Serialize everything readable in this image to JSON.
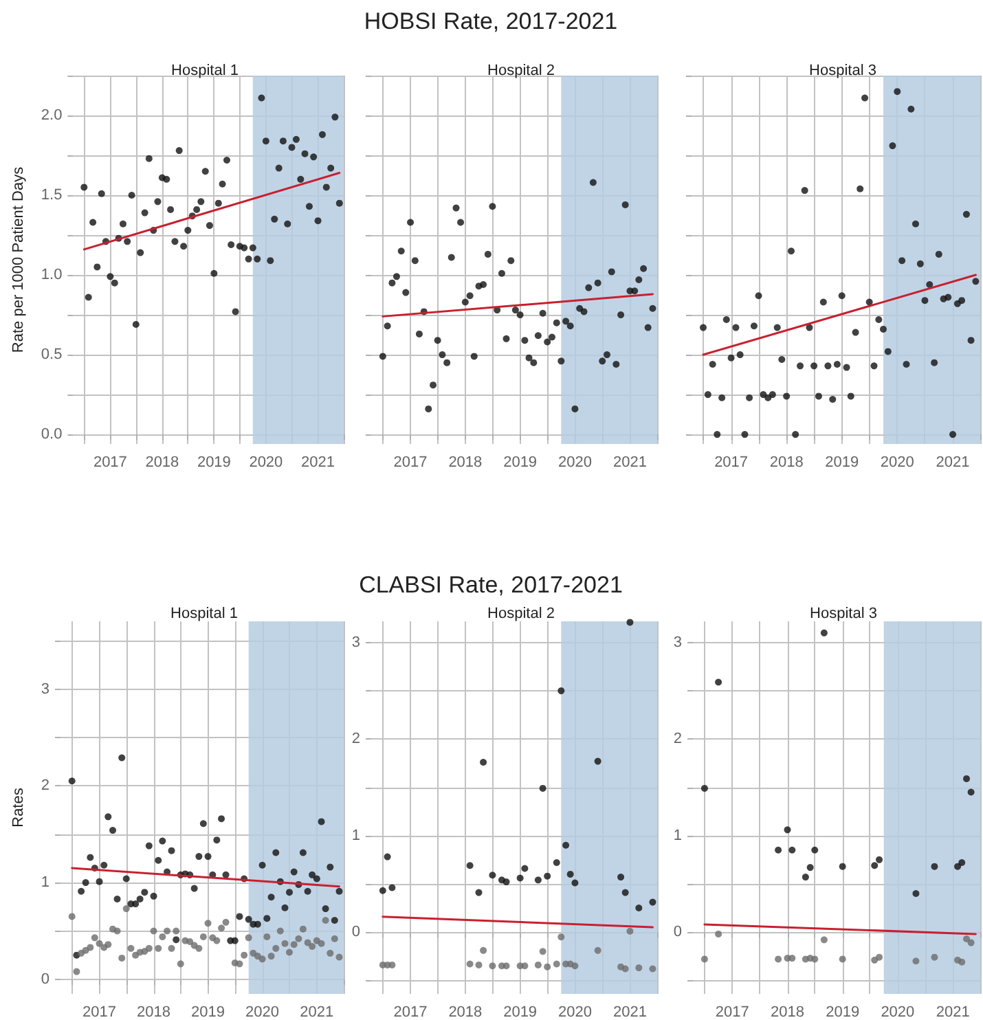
{
  "chart_data": [
    {
      "type": "scatter",
      "subtitle": "Hospital 1",
      "ylabel": "Rate per 1000 Patient Days",
      "grid": true,
      "marker": "circle",
      "x": [
        "2016-07",
        "2016-08",
        "2016-09",
        "2016-10",
        "2016-11",
        "2016-12",
        "2017-01",
        "2017-02",
        "2017-03",
        "2017-04",
        "2017-05",
        "2017-06",
        "2017-07",
        "2017-08",
        "2017-09",
        "2017-10",
        "2017-11",
        "2017-12",
        "2018-01",
        "2018-02",
        "2018-03",
        "2018-04",
        "2018-05",
        "2018-06",
        "2018-07",
        "2018-08",
        "2018-09",
        "2018-10",
        "2018-11",
        "2018-12",
        "2019-01",
        "2019-02",
        "2019-03",
        "2019-04",
        "2019-05",
        "2019-06",
        "2019-07",
        "2019-08",
        "2019-09",
        "2019-10",
        "2019-11",
        "2019-12",
        "2020-01",
        "2020-02",
        "2020-03",
        "2020-04",
        "2020-05",
        "2020-06",
        "2020-07",
        "2020-08",
        "2020-09",
        "2020-10",
        "2020-11",
        "2020-12",
        "2021-01",
        "2021-02",
        "2021-03",
        "2021-04",
        "2021-05",
        "2021-06"
      ],
      "series": [
        {
          "color": "#111111",
          "values": [
            1.55,
            0.86,
            1.33,
            1.05,
            1.51,
            1.21,
            0.99,
            0.95,
            1.23,
            1.32,
            1.21,
            1.5,
            0.69,
            1.14,
            1.39,
            1.73,
            1.28,
            1.46,
            1.61,
            1.6,
            1.41,
            1.21,
            1.78,
            1.18,
            1.28,
            1.37,
            1.41,
            1.46,
            1.65,
            1.31,
            1.01,
            1.45,
            1.57,
            1.72,
            1.19,
            0.77,
            1.18,
            1.17,
            1.1,
            1.17,
            1.1,
            2.11,
            1.84,
            1.09,
            1.35,
            1.67,
            1.84,
            1.32,
            1.8,
            1.85,
            1.6,
            1.76,
            1.43,
            1.74,
            1.34,
            1.88,
            1.55,
            1.67,
            1.99,
            1.45
          ]
        },
        {
          "type": "line",
          "marker": "none",
          "color": "#c8202f",
          "x": [
            "2016-07",
            "2021-06"
          ],
          "values": [
            1.16,
            1.64
          ]
        }
      ],
      "bands": [
        {
          "axis": "x",
          "from": "2019-10",
          "to": "2021-07",
          "color": "#b6cde2"
        }
      ],
      "xlim": [
        "2016-04-15",
        "2021-07"
      ],
      "xticks": [
        {
          "value": "2016-07",
          "label": null
        },
        "2017",
        {
          "value": "2017-07",
          "label": null
        },
        "2018",
        {
          "value": "2018-07",
          "label": null
        },
        "2019",
        {
          "value": "2019-07",
          "label": null
        },
        "2020",
        {
          "value": "2020-07",
          "label": null
        },
        "2021",
        {
          "value": "2021-07",
          "label": null
        }
      ],
      "ylim": [
        -0.06,
        2.25
      ],
      "yticks": [
        {
          "value": 0,
          "label": "0.0"
        },
        {
          "value": 0.25,
          "label": null
        },
        0.5,
        {
          "value": 0.75,
          "label": null
        },
        {
          "value": 1,
          "label": "1.0"
        },
        {
          "value": 1.25,
          "label": null
        },
        1.5,
        {
          "value": 1.75,
          "label": null
        },
        {
          "value": 2,
          "label": "2.0"
        },
        {
          "value": 2.25,
          "label": null
        }
      ]
    },
    {
      "type": "scatter",
      "title": "HOBSI Rate, 2017-2021",
      "subtitle": "Hospital 2",
      "grid": true,
      "marker": "circle",
      "tick_labels": "x",
      "x": [
        "2016-07",
        "2016-08",
        "2016-09",
        "2016-10",
        "2016-11",
        "2016-12",
        "2017-01",
        "2017-02",
        "2017-03",
        "2017-04",
        "2017-05",
        "2017-06",
        "2017-07",
        "2017-08",
        "2017-09",
        "2017-10",
        "2017-11",
        "2017-12",
        "2018-01",
        "2018-02",
        "2018-03",
        "2018-04",
        "2018-05",
        "2018-06",
        "2018-07",
        "2018-08",
        "2018-09",
        "2018-10",
        "2018-11",
        "2018-12",
        "2019-01",
        "2019-02",
        "2019-03",
        "2019-04",
        "2019-05",
        "2019-06",
        "2019-07",
        "2019-08",
        "2019-09",
        "2019-10",
        "2019-11",
        "2019-12",
        "2020-01",
        "2020-02",
        "2020-03",
        "2020-04",
        "2020-05",
        "2020-06",
        "2020-07",
        "2020-08",
        "2020-09",
        "2020-10",
        "2020-11",
        "2020-12",
        "2021-01",
        "2021-02",
        "2021-03",
        "2021-04",
        "2021-05",
        "2021-06"
      ],
      "yticks": [
        0,
        0.25,
        0.5,
        0.75,
        1,
        1.25,
        1.5,
        1.75,
        2,
        2.25
      ],
      "series": [
        {
          "color": "#111111",
          "values": [
            0.49,
            0.68,
            0.95,
            0.99,
            1.15,
            0.89,
            1.33,
            1.09,
            0.63,
            0.77,
            0.16,
            0.31,
            0.59,
            0.5,
            0.45,
            1.11,
            1.42,
            1.33,
            0.83,
            0.87,
            0.49,
            0.93,
            0.94,
            1.13,
            1.43,
            0.78,
            1.01,
            0.6,
            1.09,
            0.78,
            0.75,
            0.59,
            0.48,
            0.45,
            0.62,
            0.76,
            0.58,
            0.61,
            0.7,
            0.46,
            0.71,
            0.68,
            0.16,
            0.79,
            0.77,
            0.92,
            1.58,
            0.95,
            0.46,
            0.5,
            1.02,
            0.44,
            0.75,
            1.44,
            0.9,
            0.9,
            0.97,
            1.04,
            0.67,
            0.79
          ]
        },
        {
          "type": "line",
          "marker": "none",
          "color": "#c8202f",
          "x": [
            "2016-07",
            "2021-06"
          ],
          "values": [
            0.74,
            0.88
          ]
        }
      ],
      "bands": [
        {
          "axis": "x",
          "from": "2019-10",
          "to": "2021-07",
          "color": "#b6cde2"
        }
      ],
      "xlim": [
        "2016-04-15",
        "2021-07"
      ],
      "xticks": [
        {
          "value": "2016-07",
          "label": null
        },
        "2017",
        {
          "value": "2017-07",
          "label": null
        },
        "2018",
        {
          "value": "2018-07",
          "label": null
        },
        "2019",
        {
          "value": "2019-07",
          "label": null
        },
        "2020",
        {
          "value": "2020-07",
          "label": null
        },
        "2021",
        {
          "value": "2021-07",
          "label": null
        }
      ],
      "ylim": [
        -0.06,
        2.25
      ]
    },
    {
      "type": "scatter",
      "subtitle": "Hospital 3",
      "grid": true,
      "marker": "circle",
      "tick_labels": "x",
      "x": [
        "2016-07",
        "2016-08",
        "2016-09",
        "2016-10",
        "2016-11",
        "2016-12",
        "2017-01",
        "2017-02",
        "2017-03",
        "2017-04",
        "2017-05",
        "2017-06",
        "2017-07",
        "2017-08",
        "2017-09",
        "2017-10",
        "2017-11",
        "2017-12",
        "2018-01",
        "2018-02",
        "2018-03",
        "2018-04",
        "2018-05",
        "2018-06",
        "2018-07",
        "2018-08",
        "2018-09",
        "2018-10",
        "2018-11",
        "2018-12",
        "2019-01",
        "2019-02",
        "2019-03",
        "2019-04",
        "2019-05",
        "2019-06",
        "2019-07",
        "2019-08",
        "2019-09",
        "2019-10",
        "2019-11",
        "2019-12",
        "2020-01",
        "2020-02",
        "2020-03",
        "2020-04",
        "2020-05",
        "2020-06",
        "2020-07",
        "2020-08",
        "2020-09",
        "2020-10",
        "2020-11",
        "2020-12",
        "2021-01",
        "2021-02",
        "2021-03",
        "2021-04",
        "2021-05",
        "2021-06"
      ],
      "yticks": [
        0,
        0.25,
        0.5,
        0.75,
        1,
        1.25,
        1.5,
        1.75,
        2,
        2.25
      ],
      "series": [
        {
          "color": "#111111",
          "values": [
            0.67,
            0.25,
            0.44,
            0,
            0.23,
            0.72,
            0.48,
            0.67,
            0.5,
            0,
            0.23,
            0.68,
            0.87,
            0.25,
            0.23,
            0.25,
            0.67,
            0.47,
            0.24,
            1.15,
            0,
            0.43,
            1.53,
            0.67,
            0.43,
            0.24,
            0.83,
            0.43,
            0.22,
            0.44,
            0.87,
            0.42,
            0.24,
            0.64,
            1.54,
            2.11,
            0.83,
            0.43,
            0.72,
            0.66,
            0.52,
            1.81,
            2.15,
            1.09,
            0.44,
            2.04,
            1.32,
            1.07,
            0.84,
            0.94,
            0.45,
            1.13,
            0.85,
            0.86,
            0,
            0.82,
            0.84,
            1.38,
            0.59,
            0.96
          ]
        },
        {
          "type": "line",
          "marker": "none",
          "color": "#c8202f",
          "x": [
            "2016-07",
            "2021-06"
          ],
          "values": [
            0.5,
            1.0
          ]
        }
      ],
      "bands": [
        {
          "axis": "x",
          "from": "2019-10",
          "to": "2021-07",
          "color": "#b6cde2"
        }
      ],
      "xlim": [
        "2016-04-15",
        "2021-07"
      ],
      "xticks": [
        {
          "value": "2016-07",
          "label": null
        },
        "2017",
        {
          "value": "2017-07",
          "label": null
        },
        "2018",
        {
          "value": "2018-07",
          "label": null
        },
        "2019",
        {
          "value": "2019-07",
          "label": null
        },
        "2020",
        {
          "value": "2020-07",
          "label": null
        },
        "2021",
        {
          "value": "2021-07",
          "label": null
        }
      ],
      "ylim": [
        -0.06,
        2.25
      ]
    },
    {
      "type": "scatter",
      "subtitle": "Hospital 1",
      "ylabel": "Rates",
      "grid": true,
      "marker": "circle",
      "x": [
        "2016-07",
        "2016-08",
        "2016-09",
        "2016-10",
        "2016-11",
        "2016-12",
        "2017-01",
        "2017-02",
        "2017-03",
        "2017-04",
        "2017-05",
        "2017-06",
        "2017-07",
        "2017-08",
        "2017-09",
        "2017-10",
        "2017-11",
        "2017-12",
        "2018-01",
        "2018-02",
        "2018-03",
        "2018-04",
        "2018-05",
        "2018-06",
        "2018-07",
        "2018-08",
        "2018-09",
        "2018-10",
        "2018-11",
        "2018-12",
        "2019-01",
        "2019-02",
        "2019-03",
        "2019-04",
        "2019-05",
        "2019-06",
        "2019-07",
        "2019-08",
        "2019-09",
        "2019-10",
        "2019-11",
        "2019-12",
        "2020-01",
        "2020-02",
        "2020-03",
        "2020-04",
        "2020-05",
        "2020-06",
        "2020-07",
        "2020-08",
        "2020-09",
        "2020-10",
        "2020-11",
        "2020-12",
        "2021-01",
        "2021-02",
        "2021-03",
        "2021-04",
        "2021-05",
        "2021-06"
      ],
      "series": [
        {
          "color": "#111111",
          "values": [
            2.05,
            0.25,
            0.91,
            1.0,
            1.26,
            1.15,
            1.01,
            1.18,
            1.68,
            1.54,
            0.83,
            2.29,
            1.04,
            0.78,
            0.78,
            0.83,
            0.9,
            1.38,
            0.86,
            1.23,
            1.43,
            1.11,
            1.33,
            0.41,
            1.08,
            1.09,
            1.08,
            0.94,
            1.27,
            1.61,
            1.27,
            1.08,
            1.44,
            1.66,
            1.08,
            0.4,
            0.4,
            0.65,
            1.04,
            0.62,
            0.57,
            0.57,
            1.18,
            0.63,
            0.85,
            1.31,
            1.01,
            0.74,
            0.9,
            1.11,
            0.98,
            1.31,
            0.91,
            1.08,
            1.04,
            1.63,
            0.73,
            1.16,
            0.61,
            0.91
          ]
        },
        {
          "color": "#6b6b6b",
          "values": [
            0.65,
            0.08,
            0.27,
            0.3,
            0.33,
            0.43,
            0.37,
            0.33,
            0.36,
            0.52,
            0.5,
            0.22,
            0.73,
            0.32,
            0.25,
            0.28,
            0.29,
            0.32,
            0.5,
            0.32,
            0.44,
            0.5,
            0.32,
            0.5,
            0.16,
            0.4,
            0.39,
            0.35,
            0.32,
            0.44,
            0.58,
            0.43,
            0.4,
            0.53,
            0.59,
            null,
            0.17,
            0.16,
            0.25,
            0.43,
            0.27,
            0.24,
            0.21,
            0.44,
            0.24,
            0.32,
            0.5,
            0.37,
            0.28,
            0.36,
            0.42,
            0.52,
            0.38,
            0.34,
            0.4,
            0.37,
            0.61,
            0.27,
            0.42,
            0.23
          ]
        },
        {
          "type": "line",
          "marker": "none",
          "color": "#c8202f",
          "x": [
            "2016-07",
            "2021-06"
          ],
          "values": [
            1.15,
            0.96
          ]
        }
      ],
      "bands": [
        {
          "axis": "x",
          "from": "2019-10",
          "to": "2021-07",
          "color": "#b6cde2"
        }
      ],
      "xlim": [
        "2016-04-15",
        "2021-07"
      ],
      "xticks": [
        {
          "value": "2016-07",
          "label": null
        },
        "2017",
        {
          "value": "2017-07",
          "label": null
        },
        "2018",
        {
          "value": "2018-07",
          "label": null
        },
        "2019",
        {
          "value": "2019-07",
          "label": null
        },
        "2020",
        {
          "value": "2020-07",
          "label": null
        },
        "2021",
        {
          "value": "2021-07",
          "label": null
        }
      ],
      "ylim": [
        -0.15,
        3.7
      ],
      "yticks": [
        0,
        {
          "value": 0.5,
          "label": null
        },
        1,
        {
          "value": 1.5,
          "label": null
        },
        2,
        {
          "value": 2.5,
          "label": null
        },
        3,
        {
          "value": 3.5,
          "label": null
        }
      ]
    },
    {
      "type": "scatter",
      "title": "CLABSI Rate, 2017-2021",
      "subtitle": "Hospital 2",
      "grid": true,
      "marker": "circle",
      "series": [
        {
          "color": "#111111",
          "x": [
            "2016-07",
            "2016-08",
            "2016-09",
            "2018-02",
            "2018-04",
            "2018-05",
            "2018-07",
            "2018-09",
            "2018-10",
            "2019-01",
            "2019-02",
            "2019-05",
            "2019-06",
            "2019-07",
            "2019-09",
            "2019-10",
            "2019-11",
            "2019-12",
            "2020-01",
            "2020-06",
            "2020-11",
            "2020-12",
            "2021-01",
            "2021-03",
            "2021-06"
          ],
          "values": [
            0.43,
            0.78,
            0.46,
            0.69,
            0.41,
            1.76,
            0.59,
            0.54,
            0.52,
            0.56,
            0.66,
            0.54,
            1.49,
            0.58,
            0.72,
            2.5,
            0.9,
            0.6,
            0.51,
            1.77,
            0.57,
            0.41,
            3.21,
            0.25,
            0.31
          ]
        },
        {
          "color": "#6b6b6b",
          "x": [
            "2016-07",
            "2016-08",
            "2016-09",
            "2018-02",
            "2018-04",
            "2018-05",
            "2018-07",
            "2018-09",
            "2018-10",
            "2019-01",
            "2019-02",
            "2019-05",
            "2019-06",
            "2019-07",
            "2019-09",
            "2019-10",
            "2019-11",
            "2019-12",
            "2020-01",
            "2020-06",
            "2020-11",
            "2020-12",
            "2021-01",
            "2021-03",
            "2021-06"
          ],
          "values": [
            -0.34,
            -0.34,
            -0.34,
            -0.33,
            -0.34,
            -0.19,
            -0.35,
            -0.35,
            -0.35,
            -0.35,
            -0.35,
            -0.34,
            -0.2,
            -0.36,
            -0.33,
            -0.05,
            -0.33,
            -0.33,
            -0.35,
            -0.19,
            -0.36,
            -0.38,
            0.01,
            -0.37,
            -0.38
          ]
        },
        {
          "type": "line",
          "marker": "none",
          "color": "#c8202f",
          "x": [
            "2016-07",
            "2021-06"
          ],
          "values": [
            0.16,
            0.05
          ]
        }
      ],
      "bands": [
        {
          "axis": "x",
          "from": "2019-10",
          "to": "2021-07",
          "color": "#b6cde2"
        }
      ],
      "xlim": [
        "2016-04-15",
        "2021-07"
      ],
      "xticks": [
        {
          "value": "2016-07",
          "label": null
        },
        "2017",
        {
          "value": "2017-07",
          "label": null
        },
        "2018",
        {
          "value": "2018-07",
          "label": null
        },
        "2019",
        {
          "value": "2019-07",
          "label": null
        },
        "2020",
        {
          "value": "2020-07",
          "label": null
        },
        "2021",
        {
          "value": "2021-07",
          "label": null
        }
      ],
      "ylim": [
        -0.64,
        3.22
      ],
      "yticks": [
        {
          "value": -0.5,
          "label": null
        },
        0,
        {
          "value": 0.5,
          "label": null
        },
        1,
        {
          "value": 1.5,
          "label": null
        },
        2,
        {
          "value": 2.5,
          "label": null
        },
        3
      ]
    },
    {
      "type": "scatter",
      "subtitle": "Hospital 3",
      "grid": true,
      "marker": "circle",
      "series": [
        {
          "color": "#111111",
          "x": [
            "2016-07",
            "2016-10",
            "2017-11",
            "2018-01",
            "2018-02",
            "2018-05",
            "2018-06",
            "2018-07",
            "2018-09",
            "2019-01",
            "2019-08",
            "2019-09",
            "2020-05",
            "2020-09",
            "2021-02",
            "2021-03",
            "2021-04",
            "2021-05"
          ],
          "values": [
            1.49,
            2.59,
            0.85,
            1.06,
            0.85,
            0.57,
            0.67,
            0.85,
            3.1,
            0.68,
            0.69,
            0.75,
            0.4,
            0.68,
            0.68,
            0.72,
            1.59,
            1.45
          ]
        },
        {
          "color": "#6b6b6b",
          "x": [
            "2016-07",
            "2016-10",
            "2017-11",
            "2018-01",
            "2018-02",
            "2018-05",
            "2018-06",
            "2018-07",
            "2018-09",
            "2019-01",
            "2019-08",
            "2019-09",
            "2020-05",
            "2020-09",
            "2021-02",
            "2021-03",
            "2021-04",
            "2021-05"
          ],
          "values": [
            -0.28,
            -0.02,
            -0.28,
            -0.27,
            -0.27,
            -0.28,
            -0.27,
            -0.28,
            -0.08,
            -0.28,
            -0.29,
            -0.26,
            -0.3,
            -0.26,
            -0.29,
            -0.31,
            -0.07,
            -0.11
          ]
        },
        {
          "type": "line",
          "marker": "none",
          "color": "#c8202f",
          "x": [
            "2016-07",
            "2021-06"
          ],
          "values": [
            0.08,
            -0.02
          ]
        }
      ],
      "bands": [
        {
          "axis": "x",
          "from": "2019-10",
          "to": "2021-07",
          "color": "#b6cde2"
        }
      ],
      "xlim": [
        "2016-04-15",
        "2021-07"
      ],
      "xticks": [
        {
          "value": "2016-07",
          "label": null
        },
        "2017",
        {
          "value": "2017-07",
          "label": null
        },
        "2018",
        {
          "value": "2018-07",
          "label": null
        },
        "2019",
        {
          "value": "2019-07",
          "label": null
        },
        "2020",
        {
          "value": "2020-07",
          "label": null
        },
        "2021",
        {
          "value": "2021-07",
          "label": null
        }
      ],
      "ylim": [
        -0.64,
        3.22
      ],
      "yticks": [
        {
          "value": -0.5,
          "label": null
        },
        0,
        {
          "value": 0.5,
          "label": null
        },
        1,
        {
          "value": 1.5,
          "label": null
        },
        2,
        {
          "value": 2.5,
          "label": null
        },
        3
      ]
    }
  ]
}
